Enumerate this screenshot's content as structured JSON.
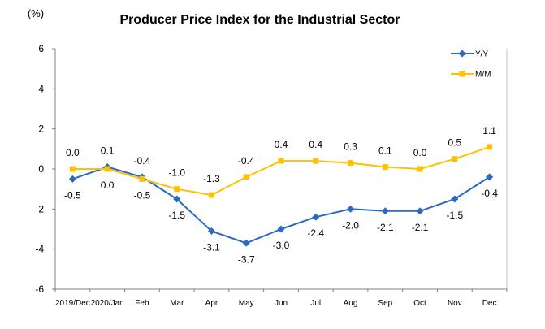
{
  "chart_data": {
    "type": "line",
    "title": "Producer Price Index for the Industrial Sector",
    "ylabel": "(%)",
    "xlabel": "",
    "categories": [
      "2019/Dec",
      "2020/Jan",
      "Feb",
      "Mar",
      "Apr",
      "May",
      "Jun",
      "Jul",
      "Aug",
      "Sep",
      "Oct",
      "Nov",
      "Dec"
    ],
    "ylim": [
      -6,
      6
    ],
    "yticks": [
      6,
      4,
      2,
      0,
      -2,
      -4,
      -6
    ],
    "grid": false,
    "legend": "top-right",
    "data_labels": true,
    "series": [
      {
        "name": "Y/Y",
        "color": "#2B6AC0",
        "marker": "diamond",
        "values": [
          -0.5,
          0.1,
          -0.4,
          -1.5,
          -3.1,
          -3.7,
          -3.0,
          -2.4,
          -2.0,
          -2.1,
          -2.1,
          -1.5,
          -0.4
        ],
        "labels": [
          "-0.5",
          "0.1",
          "-0.4",
          "-1.5",
          "-3.1",
          "-3.7",
          "-3.0",
          "-2.4",
          "-2.0",
          "-2.1",
          "-2.1",
          "-1.5",
          "-0.4"
        ]
      },
      {
        "name": "M/M",
        "color": "#FFC000",
        "marker": "square",
        "values": [
          0.0,
          0.0,
          -0.5,
          -1.0,
          -1.3,
          -0.4,
          0.4,
          0.4,
          0.3,
          0.1,
          0.0,
          0.5,
          1.1
        ],
        "labels": [
          "0.0",
          "0.0",
          "-0.5",
          "-1.0",
          "-1.3",
          "-0.4",
          "0.4",
          "0.4",
          "0.3",
          "0.1",
          "0.0",
          "0.5",
          "1.1"
        ]
      }
    ]
  }
}
